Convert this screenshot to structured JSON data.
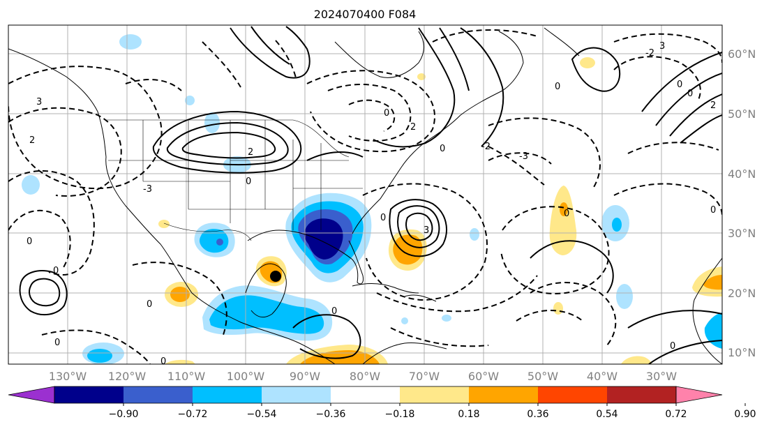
{
  "title": "2024070400 F084",
  "map": {
    "lon_labels": [
      "130°W",
      "120°W",
      "110°W",
      "100°W",
      "90°W",
      "80°W",
      "70°W",
      "60°W",
      "50°W",
      "40°W",
      "30°W"
    ],
    "lat_labels": [
      "60°N",
      "50°N",
      "40°N",
      "30°N",
      "20°N",
      "10°N"
    ]
  },
  "colorbar": {
    "ticks": [
      "−0.90",
      "−0.72",
      "−0.54",
      "−0.36",
      "−0.18",
      "0.18",
      "0.36",
      "0.54",
      "0.72",
      "0.90"
    ],
    "colors": [
      "#9b30d0",
      "#00008b",
      "#3a5fcd",
      "#00bfff",
      "#aee3ff",
      "#ffffff",
      "#ffe88a",
      "#ffa500",
      "#ff4500",
      "#b22222",
      "#ff82ab"
    ]
  },
  "contour_labels": [
    "0",
    "3",
    "2",
    "0",
    "-3",
    "2",
    "0",
    "3",
    "0",
    "2",
    "-2",
    "0",
    "0",
    "-3",
    "-2",
    "0",
    "0",
    "0",
    "0",
    "0",
    "3",
    "0",
    "2",
    "0",
    "0",
    "0",
    "0"
  ]
}
